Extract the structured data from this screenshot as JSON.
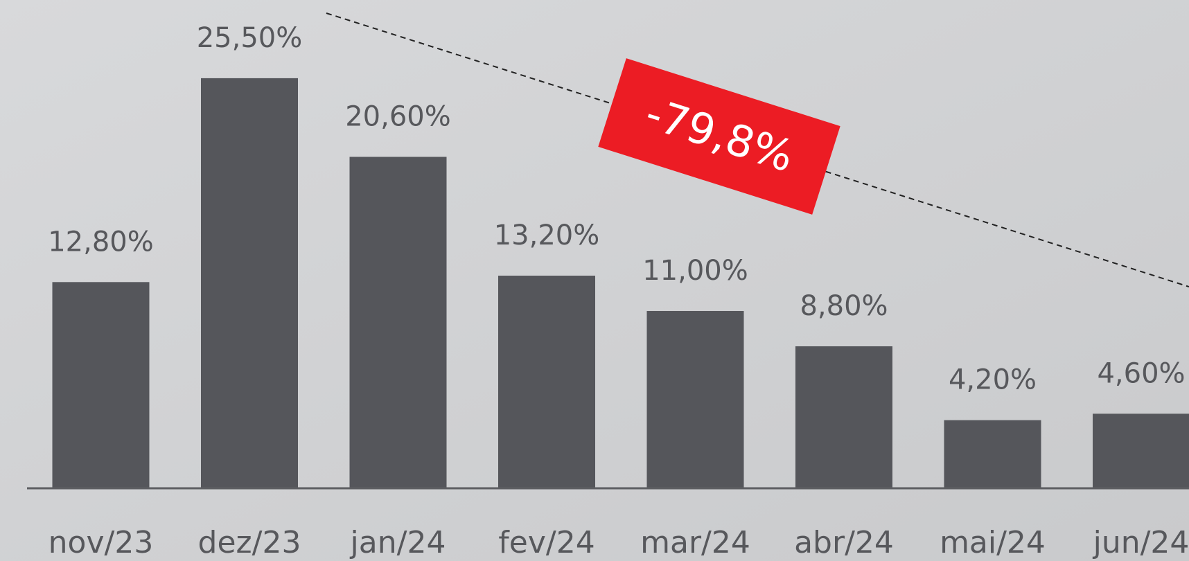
{
  "chart_data": {
    "type": "bar",
    "categories": [
      "nov/23",
      "dez/23",
      "jan/24",
      "fev/24",
      "mar/24",
      "abr/24",
      "mai/24",
      "jun/24"
    ],
    "values": [
      12.8,
      25.5,
      20.6,
      13.2,
      11.0,
      8.8,
      4.2,
      4.6
    ],
    "value_labels": [
      "12,80%",
      "25,50%",
      "20,60%",
      "13,20%",
      "11,00%",
      "8,80%",
      "4,20%",
      "4,60%"
    ],
    "color": "#55565b",
    "annotation": "-79,8%"
  }
}
